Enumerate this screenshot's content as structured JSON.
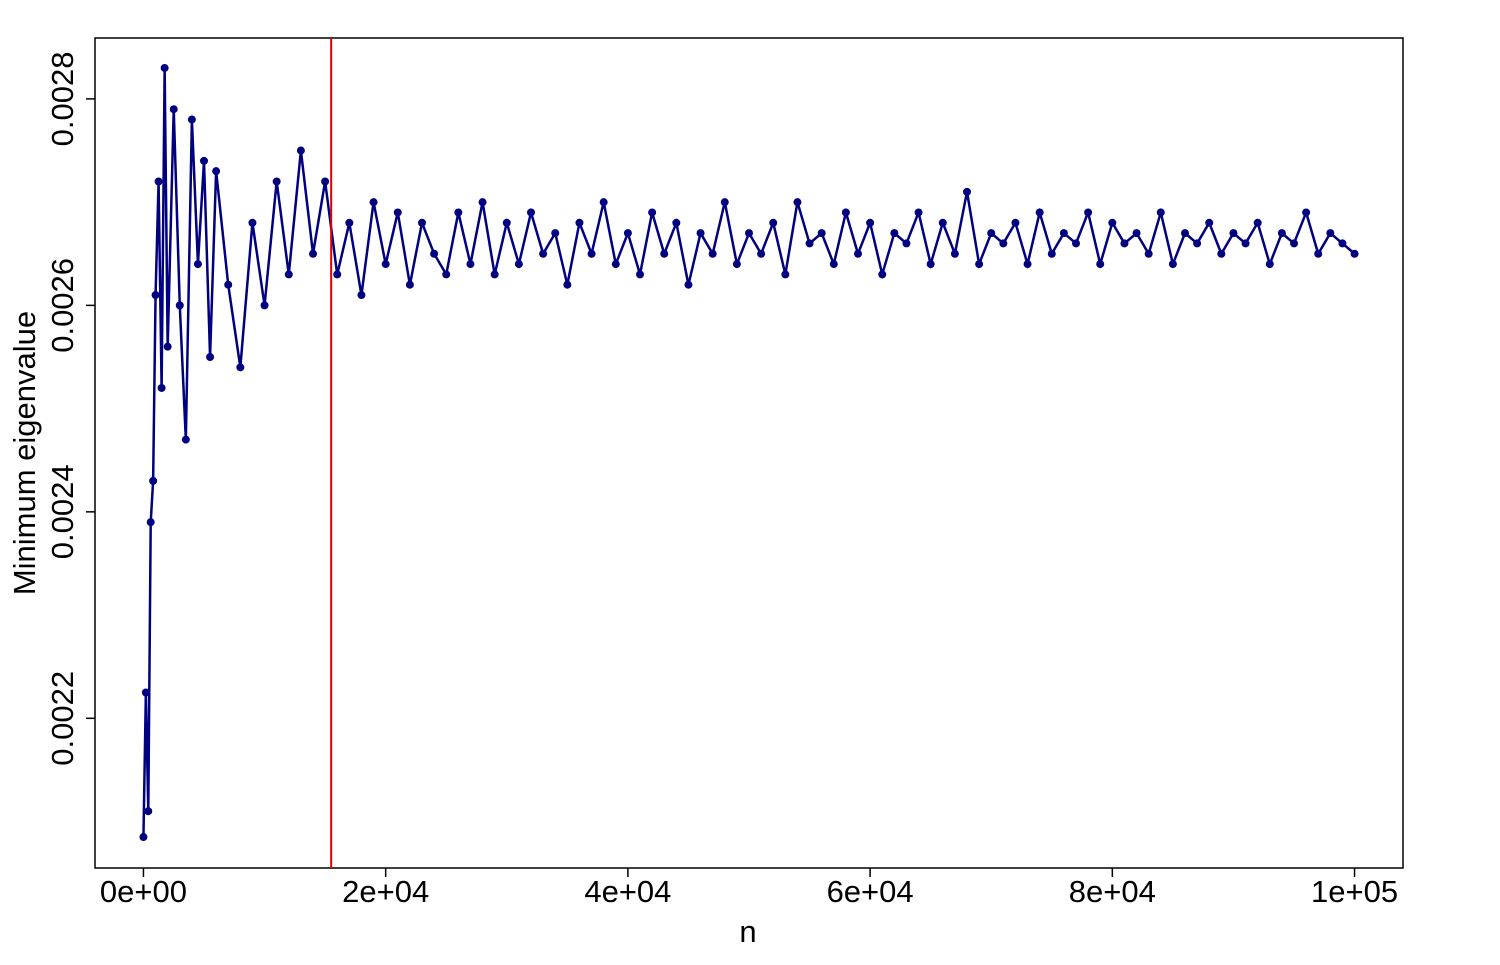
{
  "chart_data": {
    "type": "line",
    "xlabel": "n",
    "ylabel": "Minimum eigenvalue",
    "color": "#000080",
    "markers": true,
    "x": [
      0,
      200,
      400,
      600,
      800,
      1000,
      1250,
      1500,
      1750,
      2000,
      2500,
      3000,
      3500,
      4000,
      4500,
      5000,
      5500,
      6000,
      7000,
      8000,
      9000,
      10000,
      11000,
      12000,
      13000,
      14000,
      15000,
      16000,
      17000,
      18000,
      19000,
      20000,
      21000,
      22000,
      23000,
      24000,
      25000,
      26000,
      27000,
      28000,
      29000,
      30000,
      31000,
      32000,
      33000,
      34000,
      35000,
      36000,
      37000,
      38000,
      39000,
      40000,
      41000,
      42000,
      43000,
      44000,
      45000,
      46000,
      47000,
      48000,
      49000,
      50000,
      51000,
      52000,
      53000,
      54000,
      55000,
      56000,
      57000,
      58000,
      59000,
      60000,
      61000,
      62000,
      63000,
      64000,
      65000,
      66000,
      67000,
      68000,
      69000,
      70000,
      71000,
      72000,
      73000,
      74000,
      75000,
      76000,
      77000,
      78000,
      79000,
      80000,
      81000,
      82000,
      83000,
      84000,
      85000,
      86000,
      87000,
      88000,
      89000,
      90000,
      91000,
      92000,
      93000,
      94000,
      95000,
      96000,
      97000,
      98000,
      99000,
      100000
    ],
    "values": [
      0.002085,
      0.002225,
      0.00211,
      0.00239,
      0.00243,
      0.00261,
      0.00272,
      0.00252,
      0.00283,
      0.00256,
      0.00279,
      0.0026,
      0.00247,
      0.00278,
      0.00264,
      0.00274,
      0.00255,
      0.00273,
      0.00262,
      0.00254,
      0.00268,
      0.0026,
      0.00272,
      0.00263,
      0.00275,
      0.00265,
      0.00272,
      0.00263,
      0.00268,
      0.00261,
      0.0027,
      0.00264,
      0.00269,
      0.00262,
      0.00268,
      0.00265,
      0.00263,
      0.00269,
      0.00264,
      0.0027,
      0.00263,
      0.00268,
      0.00264,
      0.00269,
      0.00265,
      0.00267,
      0.00262,
      0.00268,
      0.00265,
      0.0027,
      0.00264,
      0.00267,
      0.00263,
      0.00269,
      0.00265,
      0.00268,
      0.00262,
      0.00267,
      0.00265,
      0.0027,
      0.00264,
      0.00267,
      0.00265,
      0.00268,
      0.00263,
      0.0027,
      0.00266,
      0.00267,
      0.00264,
      0.00269,
      0.00265,
      0.00268,
      0.00263,
      0.00267,
      0.00266,
      0.00269,
      0.00264,
      0.00268,
      0.00265,
      0.00271,
      0.00264,
      0.00267,
      0.00266,
      0.00268,
      0.00264,
      0.00269,
      0.00265,
      0.00267,
      0.00266,
      0.00269,
      0.00264,
      0.00268,
      0.00266,
      0.00267,
      0.00265,
      0.00269,
      0.00264,
      0.00267,
      0.00266,
      0.00268,
      0.00265,
      0.00267,
      0.00266,
      0.00268,
      0.00264,
      0.00267,
      0.00266,
      0.00269,
      0.00265,
      0.00267,
      0.00266,
      0.00265
    ],
    "vline": 15500,
    "vline_color": "#e00000",
    "xlim": [
      -4000,
      104000
    ],
    "xticks": [
      {
        "value": 0,
        "label": "0e+00"
      },
      {
        "value": 20000,
        "label": "2e+04"
      },
      {
        "value": 40000,
        "label": "4e+04"
      },
      {
        "value": 60000,
        "label": "6e+04"
      },
      {
        "value": 80000,
        "label": "8e+04"
      },
      {
        "value": 100000,
        "label": "1e+05"
      }
    ],
    "ylim": [
      0.002055,
      0.002859
    ],
    "yticks": [
      0.0022,
      0.0024,
      0.0026,
      0.0028
    ]
  }
}
